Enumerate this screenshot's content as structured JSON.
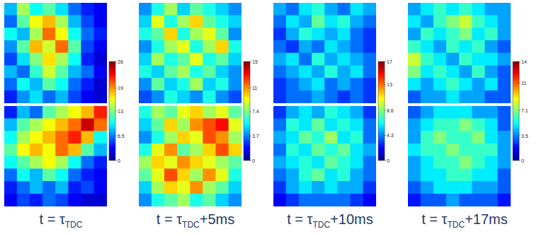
{
  "chart_data": [
    {
      "type": "heatmap",
      "title": {
        "text": "t = τ",
        "subscript": "TDC"
      },
      "tick_labels": false,
      "colorbar": {
        "range": [
          0,
          26
        ],
        "ticks": [
          0,
          6.5,
          13,
          19,
          26
        ]
      },
      "cells": [
        [
          [
            8,
            14,
            10,
            12,
            9,
            6,
            4,
            3
          ],
          [
            6,
            12,
            16,
            18,
            14,
            8,
            5,
            3
          ],
          [
            10,
            8,
            14,
            20,
            16,
            10,
            6,
            4
          ],
          [
            7,
            12,
            18,
            15,
            20,
            12,
            5,
            3
          ],
          [
            5,
            9,
            13,
            17,
            14,
            10,
            4,
            2
          ],
          [
            8,
            6,
            11,
            15,
            12,
            8,
            6,
            3
          ],
          [
            6,
            10,
            8,
            12,
            10,
            6,
            4,
            2
          ],
          [
            4,
            7,
            9,
            6,
            8,
            5,
            3,
            2
          ]
        ],
        [
          [
            4,
            8,
            6,
            12,
            14,
            16,
            18,
            22
          ],
          [
            8,
            12,
            14,
            16,
            18,
            20,
            24,
            20
          ],
          [
            10,
            14,
            16,
            18,
            20,
            22,
            18,
            10
          ],
          [
            12,
            16,
            18,
            16,
            20,
            18,
            12,
            8
          ],
          [
            10,
            12,
            14,
            16,
            14,
            10,
            6,
            4
          ],
          [
            6,
            10,
            8,
            12,
            10,
            6,
            4,
            3
          ],
          [
            4,
            6,
            8,
            6,
            8,
            4,
            5,
            3
          ],
          [
            3,
            5,
            4,
            6,
            5,
            3,
            2,
            2
          ]
        ]
      ]
    },
    {
      "type": "heatmap",
      "title": {
        "text": "t = τ",
        "subscript": "TDC",
        "suffix": "+5ms"
      },
      "tick_labels": false,
      "colorbar": {
        "range": [
          0,
          15
        ],
        "ticks": [
          0,
          3.7,
          7.4,
          11,
          15
        ]
      },
      "cells": [
        [
          [
            4,
            6,
            8,
            5,
            7,
            6,
            5,
            4
          ],
          [
            5,
            9,
            6,
            8,
            10,
            7,
            6,
            5
          ],
          [
            6,
            7,
            10,
            6,
            8,
            9,
            7,
            4
          ],
          [
            4,
            6,
            8,
            9,
            6,
            8,
            10,
            6
          ],
          [
            5,
            8,
            6,
            7,
            9,
            6,
            7,
            5
          ],
          [
            6,
            5,
            7,
            8,
            6,
            7,
            5,
            4
          ],
          [
            4,
            7,
            5,
            6,
            8,
            5,
            6,
            4
          ],
          [
            3,
            4,
            6,
            5,
            4,
            6,
            4,
            3
          ]
        ],
        [
          [
            6,
            8,
            7,
            9,
            10,
            8,
            9,
            7
          ],
          [
            5,
            7,
            10,
            8,
            11,
            12,
            13,
            9
          ],
          [
            4,
            6,
            8,
            10,
            9,
            12,
            11,
            8
          ],
          [
            6,
            9,
            11,
            7,
            8,
            10,
            12,
            10
          ],
          [
            8,
            10,
            9,
            11,
            10,
            9,
            8,
            7
          ],
          [
            7,
            9,
            12,
            10,
            8,
            11,
            9,
            6
          ],
          [
            5,
            8,
            10,
            9,
            11,
            8,
            7,
            5
          ],
          [
            4,
            6,
            7,
            8,
            6,
            7,
            5,
            4
          ]
        ]
      ]
    },
    {
      "type": "heatmap",
      "title": {
        "text": "t = τ",
        "subscript": "TDC",
        "suffix": "+10ms"
      },
      "tick_labels": false,
      "colorbar": {
        "range": [
          0,
          17
        ],
        "ticks": [
          0,
          4.3,
          8.6,
          13,
          17
        ]
      },
      "cells": [
        [
          [
            5,
            4,
            6,
            7,
            5,
            4,
            6,
            5
          ],
          [
            4,
            6,
            5,
            8,
            6,
            7,
            5,
            4
          ],
          [
            3,
            5,
            7,
            6,
            5,
            6,
            4,
            3
          ],
          [
            4,
            3,
            5,
            4,
            6,
            5,
            4,
            3
          ],
          [
            5,
            6,
            4,
            7,
            5,
            6,
            5,
            4
          ],
          [
            4,
            5,
            6,
            5,
            7,
            5,
            6,
            4
          ],
          [
            3,
            4,
            5,
            6,
            4,
            5,
            4,
            3
          ],
          [
            3,
            4,
            4,
            5,
            4,
            3,
            4,
            3
          ]
        ],
        [
          [
            3,
            5,
            6,
            5,
            7,
            6,
            5,
            3
          ],
          [
            4,
            7,
            6,
            8,
            6,
            7,
            6,
            4
          ],
          [
            5,
            6,
            8,
            7,
            9,
            6,
            7,
            4
          ],
          [
            4,
            7,
            6,
            8,
            7,
            8,
            6,
            5
          ],
          [
            5,
            6,
            7,
            6,
            8,
            7,
            6,
            4
          ],
          [
            4,
            5,
            7,
            8,
            6,
            7,
            5,
            4
          ],
          [
            3,
            5,
            6,
            5,
            6,
            5,
            5,
            3
          ],
          [
            2,
            3,
            4,
            4,
            4,
            4,
            3,
            2
          ]
        ]
      ]
    },
    {
      "type": "heatmap",
      "title": {
        "text": "t = τ",
        "subscript": "TDC",
        "suffix": "+17ms"
      },
      "tick_labels": false,
      "colorbar": {
        "range": [
          0,
          14
        ],
        "ticks": [
          0,
          3.5,
          7.1,
          11,
          14
        ]
      },
      "cells": [
        [
          [
            4,
            5,
            6,
            5,
            6,
            5,
            4,
            4
          ],
          [
            5,
            4,
            6,
            7,
            8,
            6,
            5,
            4
          ],
          [
            4,
            6,
            5,
            6,
            7,
            5,
            6,
            4
          ],
          [
            6,
            5,
            4,
            6,
            5,
            6,
            4,
            3
          ],
          [
            8,
            6,
            5,
            4,
            6,
            5,
            5,
            4
          ],
          [
            7,
            5,
            6,
            5,
            4,
            6,
            4,
            3
          ],
          [
            5,
            4,
            5,
            6,
            5,
            4,
            5,
            3
          ],
          [
            3,
            4,
            4,
            5,
            4,
            4,
            3,
            3
          ]
        ],
        [
          [
            3,
            4,
            5,
            5,
            5,
            4,
            4,
            3
          ],
          [
            4,
            5,
            6,
            6,
            7,
            6,
            5,
            3
          ],
          [
            4,
            6,
            7,
            6,
            6,
            7,
            5,
            4
          ],
          [
            5,
            6,
            6,
            7,
            6,
            6,
            6,
            4
          ],
          [
            4,
            5,
            6,
            6,
            7,
            6,
            5,
            4
          ],
          [
            4,
            5,
            5,
            6,
            6,
            5,
            5,
            3
          ],
          [
            3,
            4,
            5,
            5,
            5,
            4,
            4,
            3
          ],
          [
            2,
            3,
            3,
            4,
            3,
            3,
            3,
            2
          ]
        ]
      ]
    }
  ]
}
